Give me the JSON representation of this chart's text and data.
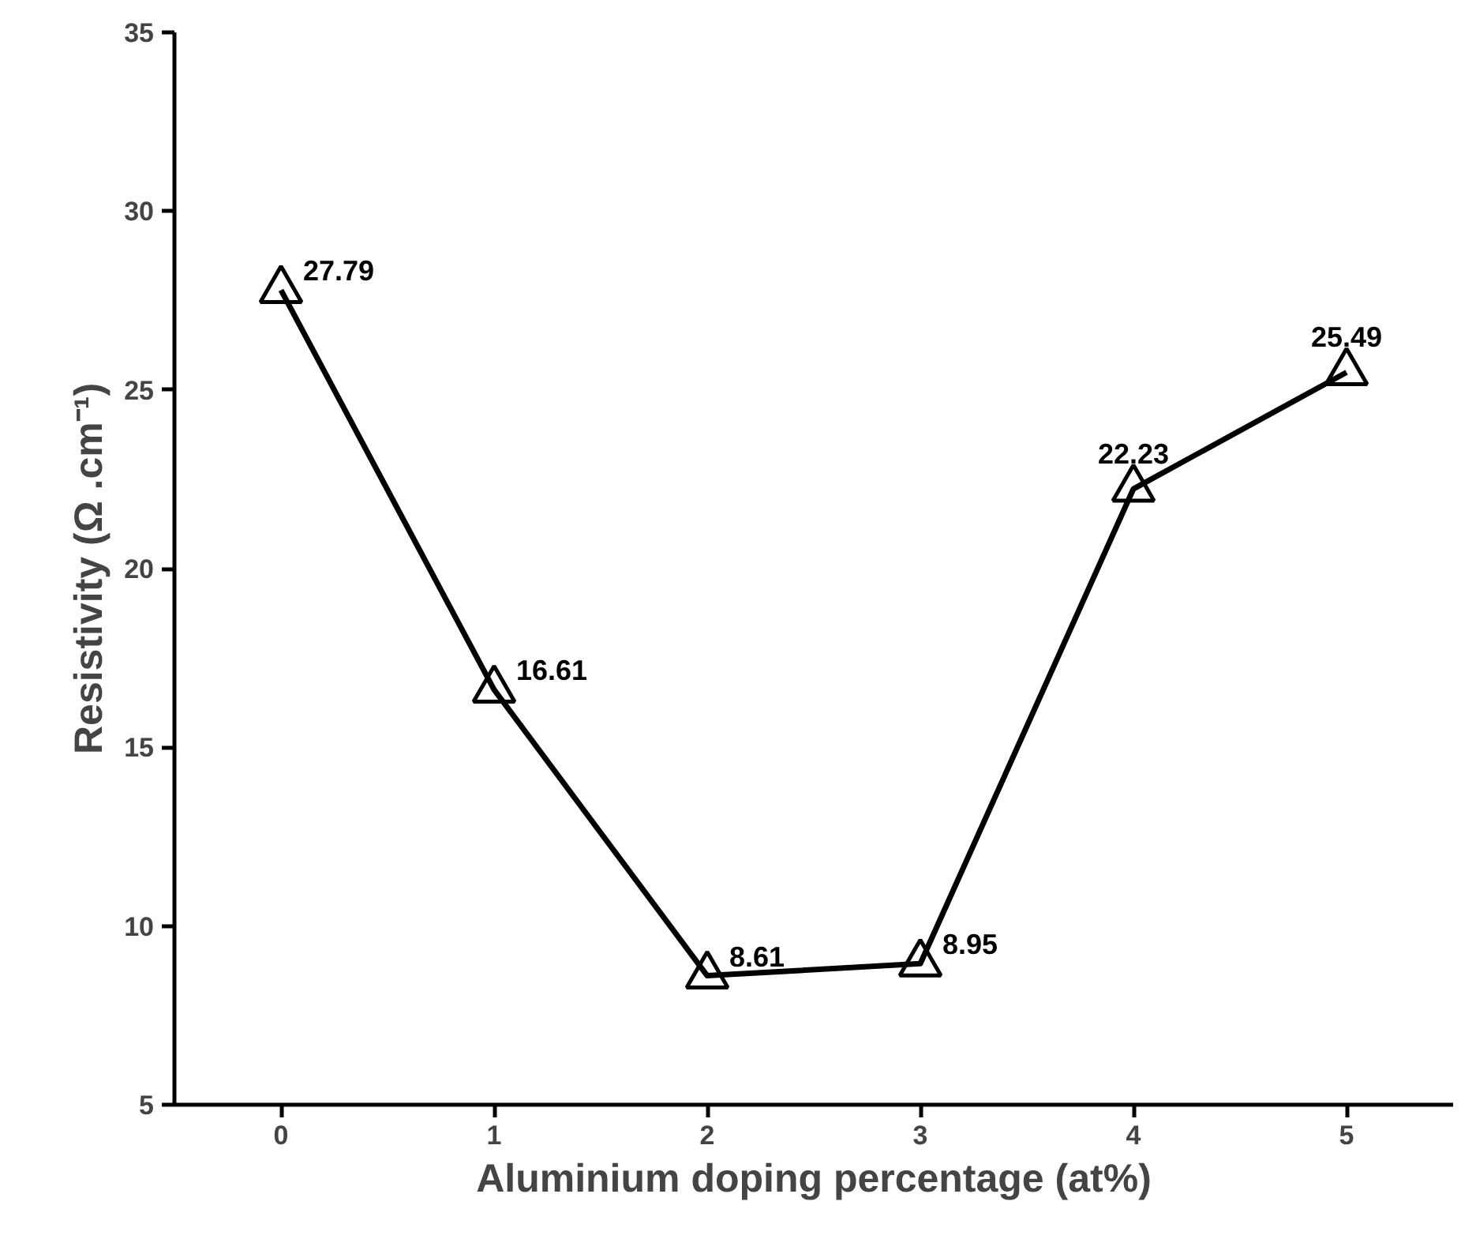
{
  "chart_data": {
    "type": "line",
    "xlabel": "Aluminium doping percentage (at%)",
    "ylabel": "Resistivity (Ω .cm⁻¹)",
    "x": [
      0,
      1,
      2,
      3,
      4,
      5
    ],
    "series": [
      {
        "color": "#000000",
        "values": [
          27.79,
          16.61,
          8.61,
          8.95,
          22.23,
          25.49
        ]
      }
    ],
    "xlim": [
      -0.5,
      5.5
    ],
    "xticks": [
      0,
      1,
      2,
      3,
      4,
      5
    ],
    "ylim": [
      5,
      35
    ],
    "yticks": [
      5,
      10,
      15,
      20,
      25,
      30,
      35
    ],
    "marker": "triangle",
    "line_style": "solid",
    "grid": false,
    "data_labels": true
  }
}
